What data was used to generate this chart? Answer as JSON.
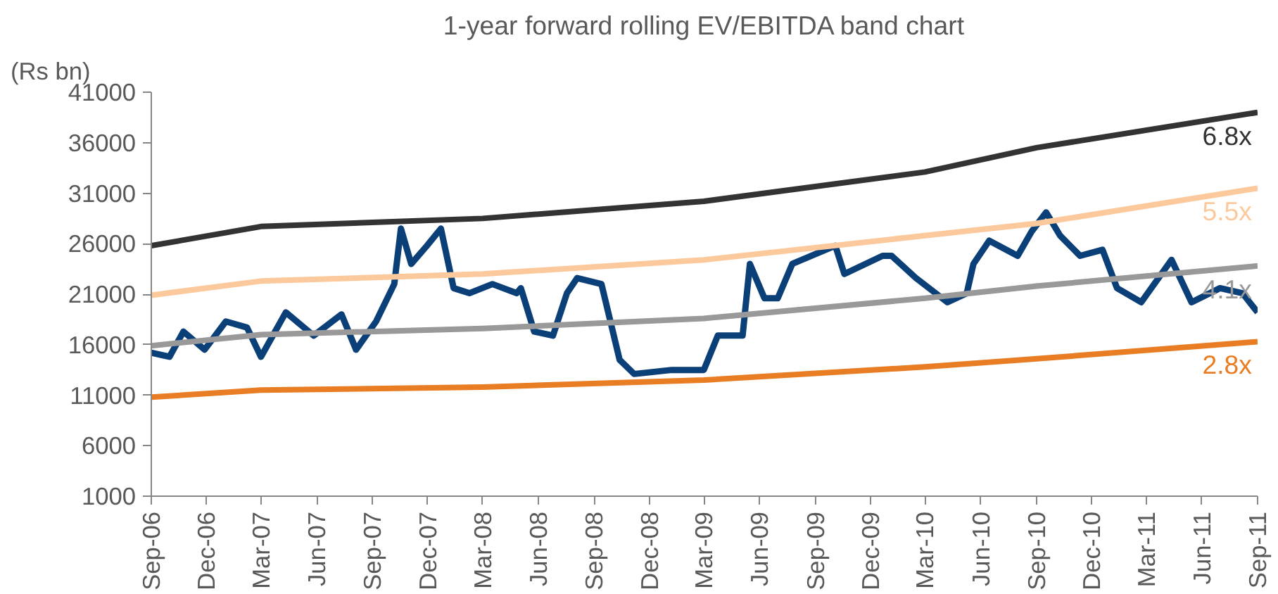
{
  "chart_data": {
    "type": "line",
    "title": "1-year forward rolling EV/EBITDA band chart",
    "ylabel": "(Rs bn)",
    "x": [
      "2006-09-01",
      "2006-10-01",
      "2006-10-24",
      "2006-11-28",
      "2007-01-02",
      "2007-02-06",
      "2007-03-01",
      "2007-04-11",
      "2007-05-27",
      "2007-07-12",
      "2007-08-05",
      "2007-09-07",
      "2007-10-07",
      "2007-10-18",
      "2007-11-04",
      "2007-11-30",
      "2007-12-23",
      "2008-01-13",
      "2008-02-08",
      "2008-03-17",
      "2008-04-26",
      "2008-05-03",
      "2008-05-25",
      "2008-06-25",
      "2008-07-18",
      "2008-08-04",
      "2008-09-13",
      "2008-10-13",
      "2008-11-06",
      "2009-01-07",
      "2009-03-01",
      "2009-03-24",
      "2009-05-04",
      "2009-05-16",
      "2009-06-09",
      "2009-07-01",
      "2009-07-25",
      "2009-10-04",
      "2009-10-19",
      "2009-12-21",
      "2010-01-05",
      "2010-02-14",
      "2010-04-07",
      "2010-05-09",
      "2010-05-20",
      "2010-06-15",
      "2010-08-01",
      "2010-08-24",
      "2010-09-17",
      "2010-10-10",
      "2010-11-12",
      "2010-12-19",
      "2011-01-12",
      "2011-02-21",
      "2011-04-12",
      "2011-05-15",
      "2011-07-01",
      "2011-08-07",
      "2011-09-01"
    ],
    "series": [
      {
        "color": "#0b3f78",
        "values": [
          15200,
          14800,
          17300,
          15500,
          18300,
          17700,
          14800,
          19200,
          16900,
          19000,
          15500,
          18300,
          22000,
          27500,
          24000,
          25800,
          27500,
          21600,
          21100,
          22000,
          21100,
          21600,
          17300,
          16900,
          21100,
          22600,
          22000,
          14500,
          13100,
          13500,
          13500,
          16900,
          16900,
          24000,
          20600,
          20600,
          24000,
          25800,
          23000,
          24800,
          24800,
          22600,
          20200,
          21100,
          24000,
          26300,
          24800,
          27200,
          29100,
          26800,
          24800,
          25400,
          21600,
          20200,
          24400,
          20200,
          21600,
          21100,
          19200
        ]
      },
      {
        "name": "6.8x",
        "color": "#333333",
        "x": [
          "2006-09-01",
          "2007-03-01",
          "2008-03-01",
          "2009-03-01",
          "2010-03-01",
          "2010-09-01",
          "2011-09-01"
        ],
        "values": [
          25800,
          27700,
          28500,
          30200,
          33100,
          35500,
          39000
        ]
      },
      {
        "name": "5.5x",
        "color": "#fbc99b",
        "x": [
          "2006-09-01",
          "2007-03-01",
          "2008-03-01",
          "2009-03-01",
          "2010-03-01",
          "2010-09-01",
          "2011-09-01"
        ],
        "values": [
          20900,
          22300,
          23000,
          24400,
          26800,
          28000,
          31500
        ]
      },
      {
        "name": "4.1x",
        "color": "#999999",
        "x": [
          "2006-09-01",
          "2007-03-01",
          "2008-03-01",
          "2009-03-01",
          "2010-03-01",
          "2010-09-01",
          "2011-09-01"
        ],
        "values": [
          15900,
          17000,
          17600,
          18600,
          20600,
          21800,
          23800
        ]
      },
      {
        "name": "2.8x",
        "color": "#e87d23",
        "x": [
          "2006-09-01",
          "2007-03-01",
          "2008-03-01",
          "2009-03-01",
          "2010-03-01",
          "2010-09-01",
          "2011-09-01"
        ],
        "values": [
          10800,
          11500,
          11800,
          12500,
          13800,
          14600,
          16300
        ]
      }
    ],
    "xlim": [
      "2006-09-01",
      "2011-09-01"
    ],
    "xticks": [
      {
        "value": "2006-09-01",
        "label": "Sep-06"
      },
      {
        "value": "2006-12-01",
        "label": "Dec-06"
      },
      {
        "value": "2007-03-01",
        "label": "Mar-07"
      },
      {
        "value": "2007-06-01",
        "label": "Jun-07"
      },
      {
        "value": "2007-09-01",
        "label": "Sep-07"
      },
      {
        "value": "2007-12-01",
        "label": "Dec-07"
      },
      {
        "value": "2008-03-01",
        "label": "Mar-08"
      },
      {
        "value": "2008-06-01",
        "label": "Jun-08"
      },
      {
        "value": "2008-09-01",
        "label": "Sep-08"
      },
      {
        "value": "2008-12-01",
        "label": "Dec-08"
      },
      {
        "value": "2009-03-01",
        "label": "Mar-09"
      },
      {
        "value": "2009-06-01",
        "label": "Jun-09"
      },
      {
        "value": "2009-09-01",
        "label": "Sep-09"
      },
      {
        "value": "2009-12-01",
        "label": "Dec-09"
      },
      {
        "value": "2010-03-01",
        "label": "Mar-10"
      },
      {
        "value": "2010-06-01",
        "label": "Jun-10"
      },
      {
        "value": "2010-09-01",
        "label": "Sep-10"
      },
      {
        "value": "2010-12-01",
        "label": "Dec-10"
      },
      {
        "value": "2011-03-01",
        "label": "Mar-11"
      },
      {
        "value": "2011-06-01",
        "label": "Jun-11"
      },
      {
        "value": "2011-09-01",
        "label": "Sep-11"
      }
    ],
    "ylim": [
      1000,
      41000
    ],
    "yticks": [
      1000,
      6000,
      11000,
      16000,
      21000,
      26000,
      31000,
      36000,
      41000
    ],
    "grid": false,
    "marker": "none",
    "line_style": "solid"
  }
}
